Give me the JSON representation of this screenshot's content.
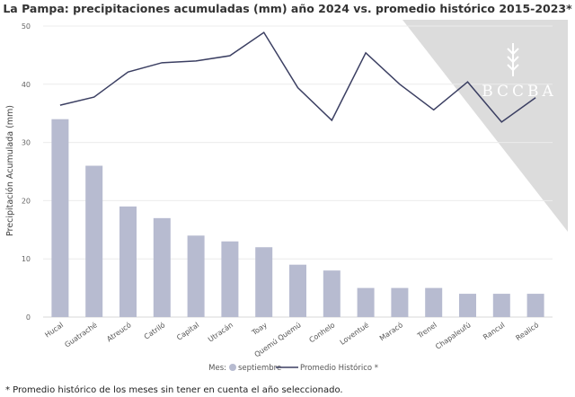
{
  "chart_data": {
    "type": "bar",
    "title": "La Pampa: precipitaciones acumuladas (mm) año 2024 vs. promedio histórico 2015-2023*",
    "xlabel": "",
    "ylabel": "Precipitación Acumulada (mm)",
    "ylim": [
      0,
      50
    ],
    "yticks": [
      0,
      10,
      20,
      30,
      40,
      50
    ],
    "grid": true,
    "categories": [
      "Hucal",
      "Guatraché",
      "Atreucó",
      "Catriló",
      "Capital",
      "Utracán",
      "Toay",
      "Quemú Quemú",
      "Conhelo",
      "Loventué",
      "Maracó",
      "Trenel",
      "Chapaleufú",
      "Rancul",
      "Realicó"
    ],
    "series": [
      {
        "name": "septiembre",
        "type": "bar",
        "color": "#b7bbd0",
        "values": [
          34,
          26,
          19,
          17,
          14,
          13,
          12,
          9,
          8,
          5,
          5,
          5,
          4,
          4,
          4
        ]
      },
      {
        "name": "Promedio Histórico *",
        "type": "line",
        "color": "#3b3f62",
        "values": [
          36.4,
          37.8,
          42.1,
          43.7,
          44.0,
          44.9,
          48.9,
          39.4,
          33.8,
          45.4,
          40.0,
          35.6,
          40.4,
          33.5,
          37.7
        ]
      }
    ],
    "legend": {
      "position": "bottom",
      "prefix": "Mes:"
    },
    "footnote": "* Promedio histórico de los meses sin tener en cuenta el año seleccionado.",
    "watermark": "BCCBA"
  }
}
